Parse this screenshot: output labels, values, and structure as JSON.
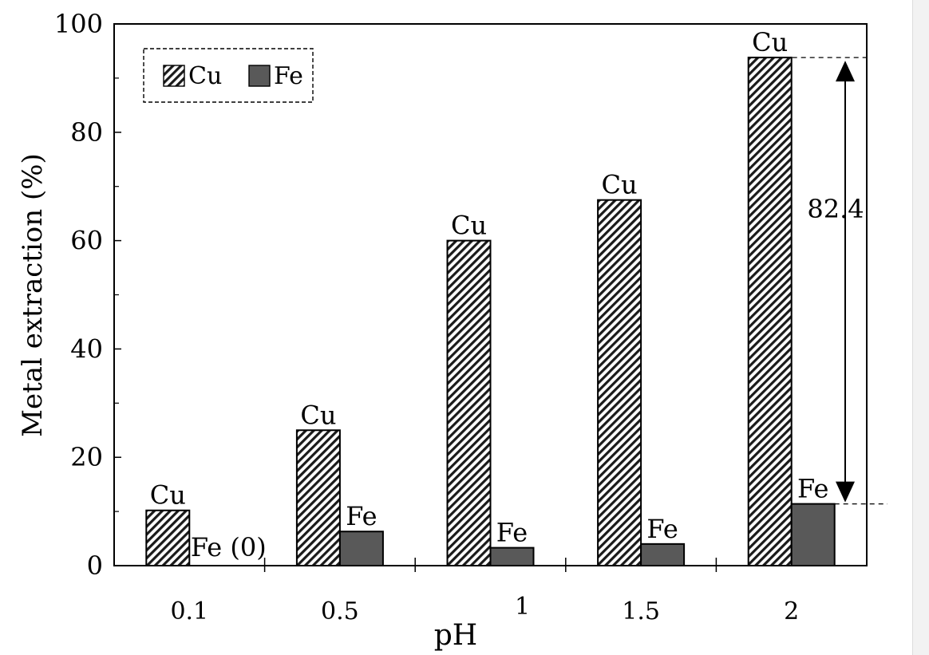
{
  "chart_data": {
    "type": "bar",
    "categories": [
      "0.1",
      "0.5",
      "1",
      "1.5",
      "2"
    ],
    "series": [
      {
        "name": "Cu",
        "values": [
          10.2,
          25,
          60,
          67.5,
          93.8
        ],
        "labels": [
          "Cu",
          "Cu",
          "Cu",
          "Cu",
          "Cu"
        ],
        "pattern": "diagonal-hatch"
      },
      {
        "name": "Fe",
        "values": [
          0,
          6.3,
          3.3,
          4,
          11.4
        ],
        "labels": [
          "Fe (0)",
          "Fe",
          "Fe",
          "Fe",
          "Fe"
        ],
        "color": "#595959"
      }
    ],
    "xlabel": "pH",
    "ylabel": "Metal extraction (%)",
    "ylim": [
      0,
      100
    ],
    "yticks": [
      "0",
      "20",
      "40",
      "60",
      "80",
      "100"
    ],
    "grid": false,
    "legend": "top-left",
    "annotation": {
      "text": "82.4",
      "from": 11.4,
      "to": 93.8
    }
  }
}
